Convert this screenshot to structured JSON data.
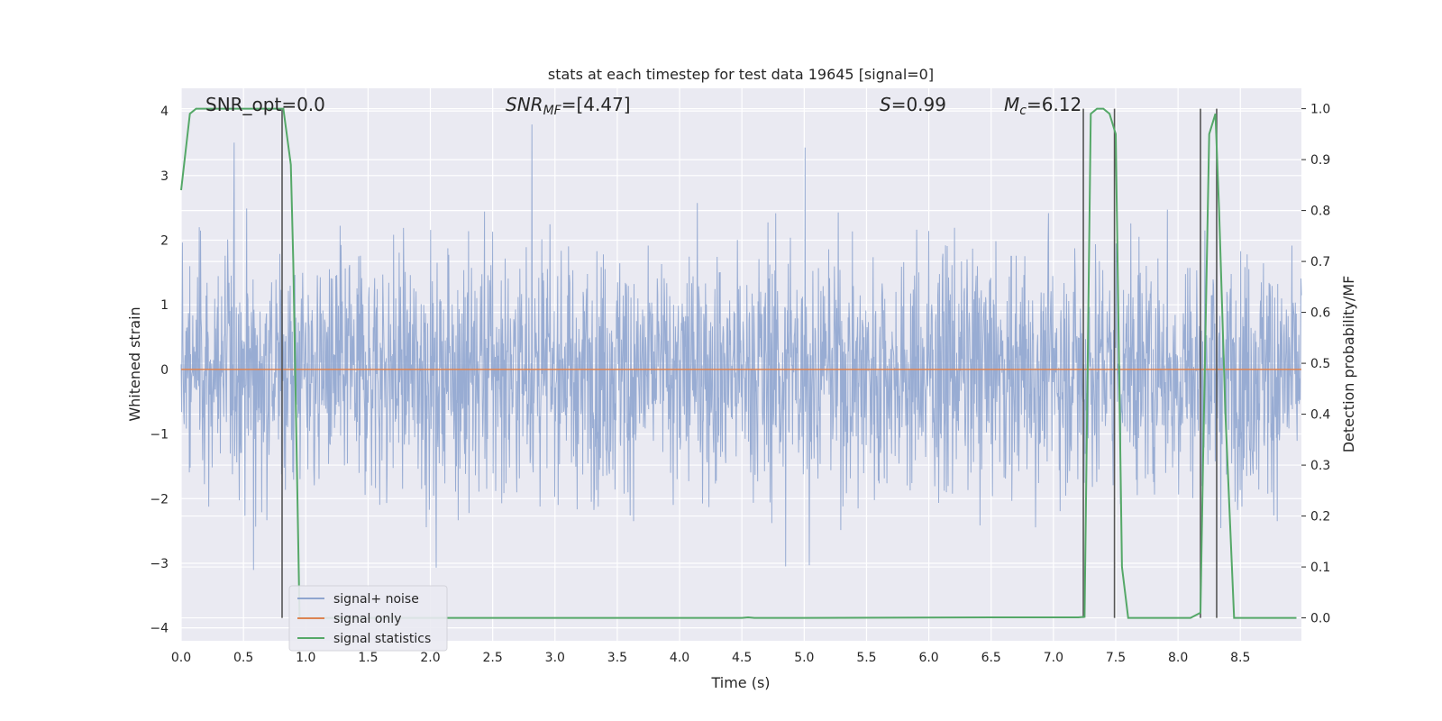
{
  "chart_data": {
    "type": "line",
    "title": "stats at each timestep for test data 19645 [signal=0]",
    "xlabel": "Time (s)",
    "ylabel": "Whitened strain",
    "y2label": "Detection probability/MF",
    "xlim": [
      0,
      8.99
    ],
    "ylim": [
      -4.2,
      4.35
    ],
    "y2lim": [
      -0.045,
      1.04
    ],
    "xticks": [
      "0.0",
      "0.5",
      "1.0",
      "1.5",
      "2.0",
      "2.5",
      "3.0",
      "3.5",
      "4.0",
      "4.5",
      "5.0",
      "5.5",
      "6.0",
      "6.5",
      "7.0",
      "7.5",
      "8.0",
      "8.5"
    ],
    "yticks": [
      "−4",
      "−3",
      "−2",
      "−1",
      "0",
      "1",
      "2",
      "3",
      "4"
    ],
    "y2ticks": [
      "0.0",
      "0.1",
      "0.2",
      "0.3",
      "0.4",
      "0.5",
      "0.6",
      "0.7",
      "0.8",
      "0.9",
      "1.0"
    ],
    "grid": true,
    "legend_position": "lower-left",
    "annotations": [
      {
        "text": "SNR_opt=0.0"
      },
      {
        "text": "SNR_MF=[4.47]",
        "main": "SNR",
        "sub": "MF",
        "rest": "=[4.47]"
      },
      {
        "text": "S=0.99",
        "main": "S",
        "rest": "=0.99"
      },
      {
        "text": "M_c=6.12",
        "main": "M",
        "sub": "c",
        "rest": "=6.12"
      }
    ],
    "series": [
      {
        "name": "signal+ noise",
        "color": "#8fa5cf",
        "kind": "noise",
        "noise_bounds": {
          "typical_max": 2.6,
          "typical_min": -2.5,
          "peak_max": 3.8,
          "peak_min": -3.45
        }
      },
      {
        "name": "signal only",
        "color": "#dd8452",
        "kind": "flat",
        "value": 0
      },
      {
        "name": "signal statistics",
        "color": "#55a868",
        "axis": "right",
        "x": [
          0.0,
          0.07,
          0.12,
          0.2,
          0.3,
          0.5,
          0.7,
          0.8,
          0.82,
          0.88,
          0.9,
          0.95,
          1.0,
          2.0,
          4.0,
          4.5,
          4.55,
          4.6,
          5.0,
          6.5,
          7.2,
          7.25,
          7.3,
          7.35,
          7.4,
          7.45,
          7.5,
          7.55,
          7.6,
          7.65,
          8.1,
          8.18,
          8.2,
          8.25,
          8.3,
          8.33,
          8.38,
          8.45,
          8.5,
          8.95
        ],
        "y": [
          0.84,
          0.99,
          1.0,
          1.0,
          1.0,
          1.0,
          1.0,
          1.0,
          1.0,
          0.89,
          0.7,
          0.0,
          0.0,
          0.0,
          0.0,
          0.0,
          0.001,
          0.0,
          0.0,
          0.001,
          0.001,
          0.002,
          0.99,
          1.0,
          1.0,
          0.99,
          0.95,
          0.1,
          0.0,
          0.0,
          0.0,
          0.01,
          0.3,
          0.95,
          0.99,
          0.8,
          0.4,
          0.0,
          0.0,
          0.0
        ]
      }
    ],
    "vertical_markers": [
      0.81,
      7.24,
      7.49,
      8.18,
      8.31
    ]
  }
}
